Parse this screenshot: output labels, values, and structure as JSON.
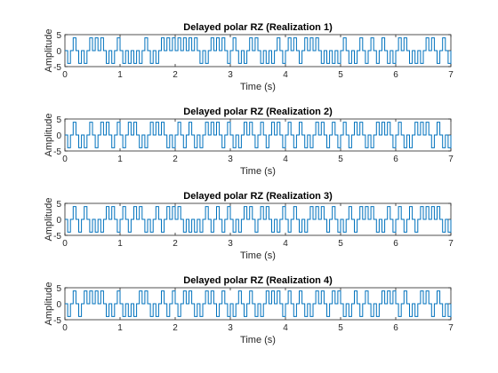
{
  "chart_data": [
    {
      "type": "line",
      "title": "Delayed polar RZ (Realization 1)",
      "xlabel": "Time (s)",
      "ylabel": "Amplitude",
      "xlim": [
        0,
        7
      ],
      "ylim": [
        -5,
        5
      ],
      "xticks": [
        "0",
        "1",
        "2",
        "3",
        "4",
        "5",
        "6",
        "7"
      ],
      "yticks": [
        "-5",
        "0",
        "5"
      ],
      "grid": false,
      "series": [
        {
          "color": "#0072BD",
          "bit_duration": 0.1,
          "amplitude": 4,
          "delay": 0.05,
          "bits": [
            0,
            1,
            0,
            0,
            1,
            1,
            1,
            0,
            0,
            1,
            0,
            0,
            0,
            0,
            1,
            0,
            0,
            1,
            1,
            1,
            1,
            1,
            1,
            1,
            0,
            0,
            1,
            1,
            1,
            0,
            1,
            0,
            0,
            1,
            1,
            0,
            0,
            0,
            1,
            0,
            1,
            1,
            0,
            1,
            1,
            1,
            0,
            0,
            0,
            0,
            1,
            0,
            0,
            1,
            0,
            1,
            0,
            1,
            0,
            0,
            1,
            1,
            0,
            0,
            0,
            1,
            1,
            0,
            1,
            0
          ]
        }
      ]
    },
    {
      "type": "line",
      "title": "Delayed polar RZ (Realization 2)",
      "xlabel": "Time (s)",
      "ylabel": "Amplitude",
      "xlim": [
        0,
        7
      ],
      "ylim": [
        -5,
        5
      ],
      "xticks": [
        "0",
        "1",
        "2",
        "3",
        "4",
        "5",
        "6",
        "7"
      ],
      "yticks": [
        "-5",
        "0",
        "5"
      ],
      "grid": false,
      "series": [
        {
          "color": "#0072BD",
          "bit_duration": 0.1,
          "amplitude": 4,
          "delay": 0.05,
          "bits": [
            0,
            1,
            0,
            0,
            1,
            0,
            1,
            1,
            0,
            1,
            0,
            1,
            1,
            0,
            0,
            1,
            1,
            1,
            0,
            0,
            1,
            0,
            1,
            0,
            0,
            1,
            1,
            1,
            0,
            1,
            0,
            0,
            1,
            1,
            0,
            1,
            0,
            1,
            1,
            0,
            1,
            0,
            1,
            0,
            0,
            1,
            1,
            0,
            1,
            0,
            1,
            0,
            1,
            1,
            0,
            0,
            1,
            1,
            1,
            0,
            1,
            0,
            0,
            1,
            1,
            1,
            0,
            1,
            0,
            0
          ]
        }
      ]
    },
    {
      "type": "line",
      "title": "Delayed polar RZ (Realization 3)",
      "xlabel": "Time (s)",
      "ylabel": "Amplitude",
      "xlim": [
        0,
        7
      ],
      "ylim": [
        -5,
        5
      ],
      "xticks": [
        "0",
        "1",
        "2",
        "3",
        "4",
        "5",
        "6",
        "7"
      ],
      "yticks": [
        "-5",
        "0",
        "5"
      ],
      "grid": false,
      "series": [
        {
          "color": "#0072BD",
          "bit_duration": 0.1,
          "amplitude": 4,
          "delay": 0.05,
          "bits": [
            0,
            1,
            0,
            1,
            0,
            0,
            0,
            1,
            1,
            0,
            1,
            0,
            1,
            1,
            0,
            0,
            1,
            0,
            1,
            1,
            1,
            0,
            0,
            0,
            0,
            1,
            0,
            1,
            0,
            1,
            0,
            0,
            1,
            1,
            0,
            1,
            1,
            0,
            0,
            1,
            0,
            1,
            0,
            0,
            1,
            1,
            1,
            0,
            1,
            0,
            0,
            1,
            0,
            1,
            1,
            1,
            0,
            0,
            1,
            0,
            1,
            0,
            1,
            0,
            1,
            1,
            1,
            1,
            0,
            0
          ]
        }
      ]
    },
    {
      "type": "line",
      "title": "Delayed polar RZ (Realization 4)",
      "xlabel": "Time (s)",
      "ylabel": "Amplitude",
      "xlim": [
        0,
        7
      ],
      "ylim": [
        -5,
        5
      ],
      "xticks": [
        "0",
        "1",
        "2",
        "3",
        "4",
        "5",
        "6",
        "7"
      ],
      "yticks": [
        "-5",
        "0",
        "5"
      ],
      "grid": false,
      "series": [
        {
          "color": "#0072BD",
          "bit_duration": 0.1,
          "amplitude": 4,
          "delay": 0.05,
          "bits": [
            0,
            1,
            0,
            1,
            1,
            1,
            1,
            0,
            0,
            1,
            0,
            0,
            0,
            1,
            1,
            0,
            0,
            1,
            0,
            1,
            0,
            1,
            1,
            0,
            0,
            1,
            1,
            0,
            1,
            0,
            0,
            1,
            0,
            1,
            0,
            0,
            1,
            1,
            1,
            0,
            1,
            0,
            1,
            0,
            0,
            1,
            1,
            0,
            1,
            1,
            0,
            0,
            1,
            0,
            1,
            0,
            0,
            1,
            1,
            1,
            0,
            1,
            0,
            0,
            1,
            1,
            0,
            1,
            0,
            0
          ]
        }
      ]
    }
  ]
}
